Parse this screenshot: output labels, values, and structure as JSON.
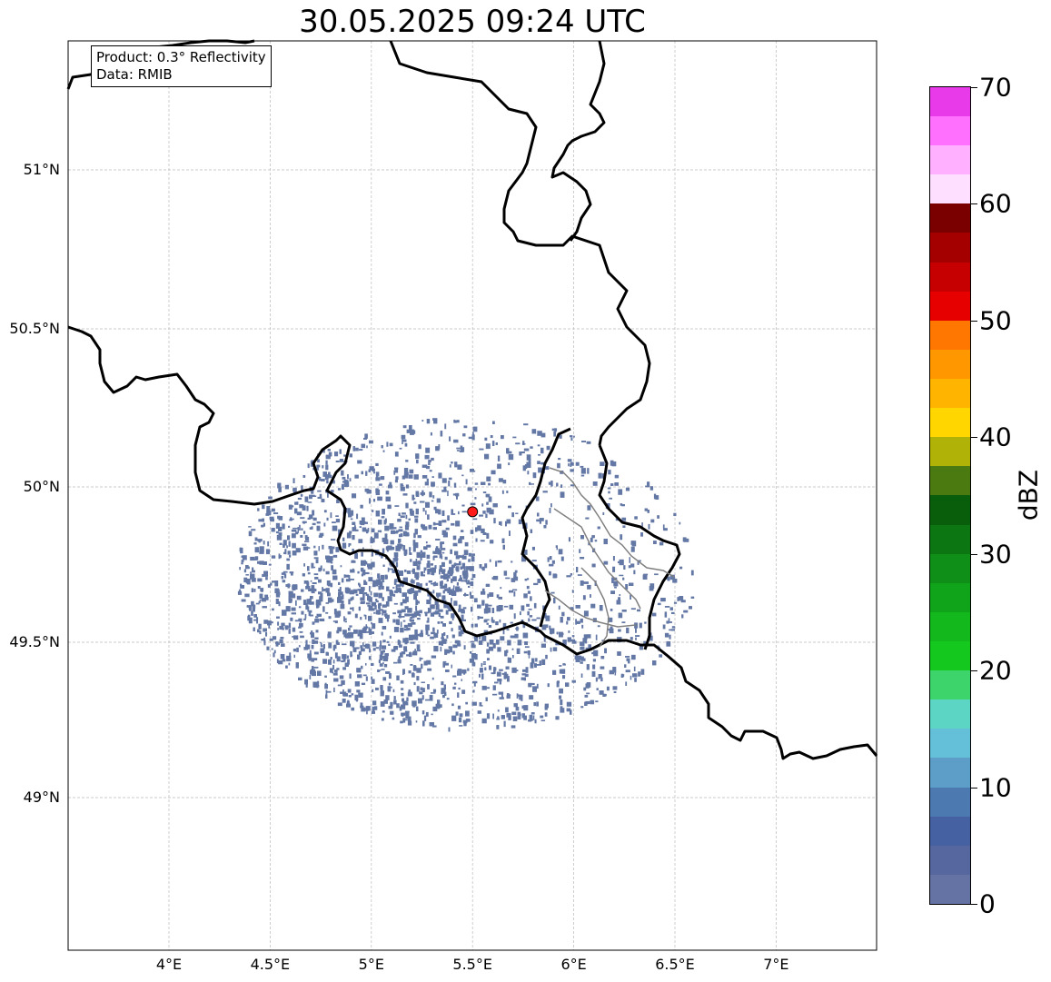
{
  "title": "30.05.2025 09:24 UTC",
  "info": {
    "product": "Product: 0.3° Reflectivity",
    "source": "Data: RMIB"
  },
  "map": {
    "lon_range": [
      3.5,
      7.5
    ],
    "lat_range": [
      48.5,
      51.4
    ],
    "lat_ticks": [
      {
        "value": 51.0,
        "label": "51°N"
      },
      {
        "value": 50.5,
        "label": "50.5°N"
      },
      {
        "value": 50.0,
        "label": "50°N"
      },
      {
        "value": 49.5,
        "label": "49.5°N"
      },
      {
        "value": 49.0,
        "label": "49°N"
      }
    ],
    "lon_ticks": [
      {
        "value": 4.0,
        "label": "4°E"
      },
      {
        "value": 4.5,
        "label": "4.5°E"
      },
      {
        "value": 5.0,
        "label": "5°E"
      },
      {
        "value": 5.5,
        "label": "5.5°E"
      },
      {
        "value": 6.0,
        "label": "6°E"
      },
      {
        "value": 6.5,
        "label": "6.5°E"
      },
      {
        "value": 7.0,
        "label": "7°E"
      }
    ],
    "radar_site": {
      "lon": 5.5,
      "lat": 49.92
    },
    "echo_color": "#6478a6",
    "grid": true
  },
  "colorbar": {
    "unit": "dBZ",
    "min": 0,
    "max": 70,
    "tick_labels": [
      "0",
      "10",
      "20",
      "30",
      "40",
      "50",
      "60",
      "70"
    ],
    "colors": [
      "#6473a3",
      "#5667a0",
      "#4661a1",
      "#4c7ab0",
      "#5c9ec8",
      "#63c0d8",
      "#5cd5c4",
      "#3ed46c",
      "#14c81e",
      "#12b81c",
      "#10a41a",
      "#0f8e18",
      "#0c7612",
      "#085e0a",
      "#4a7a10",
      "#b0b208",
      "#ffd600",
      "#ffb500",
      "#ff9800",
      "#ff7700",
      "#e60000",
      "#c60000",
      "#a40000",
      "#7a0000",
      "#ffdfff",
      "#ffb0ff",
      "#ff70ff",
      "#e93ae9"
    ]
  }
}
